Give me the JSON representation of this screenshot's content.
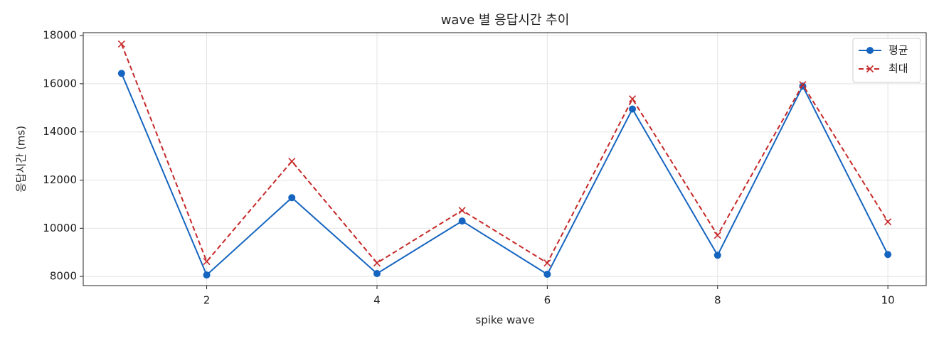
{
  "chart_data": {
    "type": "line",
    "title": "wave 별 응답시간 추이",
    "x_label": "spike wave",
    "y_label": "응답시간 (ms)",
    "x": [
      1,
      2,
      3,
      4,
      5,
      6,
      7,
      8,
      9,
      10
    ],
    "series": [
      {
        "name": "평균",
        "color": "#1565c0",
        "linestyle": "solid",
        "marker": "o",
        "values": [
          16430,
          8060,
          11270,
          8120,
          10300,
          8090,
          14950,
          8880,
          15900,
          8910
        ]
      },
      {
        "name": "최대",
        "color": "#c62828",
        "linestyle": "dashed",
        "marker": "x",
        "values": [
          17650,
          8620,
          12780,
          8560,
          10740,
          8560,
          15370,
          9710,
          15960,
          10270
        ]
      }
    ],
    "xlim": [
      0.55,
      10.45
    ],
    "ylim": [
      7620,
      18120
    ],
    "xticks": [
      2,
      4,
      6,
      8,
      10
    ],
    "yticks": [
      8000,
      10000,
      12000,
      14000,
      16000,
      18000
    ],
    "grid": true,
    "legend": "upper right"
  }
}
